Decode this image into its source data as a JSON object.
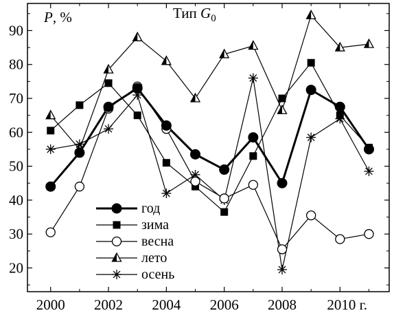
{
  "chart_data": {
    "type": "line",
    "title": {
      "prefix": "Тип ",
      "symbol": "G",
      "subscript": "0"
    },
    "ylabel": {
      "symbol": "P",
      "unit": ", %"
    },
    "xlim": [
      1999.2,
      2011.7
    ],
    "ylim": [
      13,
      98
    ],
    "x_ticks": [
      2000,
      2002,
      2004,
      2006,
      2008,
      2010
    ],
    "x_tick_labels": [
      "2000",
      "2002",
      "2004",
      "2006",
      "2008",
      "2010 г."
    ],
    "y_ticks": [
      20,
      30,
      40,
      50,
      60,
      70,
      80,
      90
    ],
    "y_tick_labels": [
      "20",
      "30",
      "40",
      "50",
      "60",
      "70",
      "80",
      "90"
    ],
    "x": [
      2000,
      2001,
      2002,
      2003,
      2004,
      2005,
      2006,
      2007,
      2008,
      2009,
      2010,
      2011
    ],
    "legend_position": "bottom-left",
    "grid": false,
    "series": [
      {
        "name": "год",
        "marker": "filled-circle",
        "thick": true,
        "values": [
          44,
          54,
          67.5,
          73,
          62,
          53.5,
          49,
          58.5,
          45,
          72.5,
          67.5,
          55
        ]
      },
      {
        "name": "зима",
        "marker": "filled-square",
        "thick": false,
        "values": [
          60.5,
          68,
          74.5,
          65,
          51,
          44,
          36.5,
          53,
          70,
          80.5,
          65,
          55.5
        ]
      },
      {
        "name": "весна",
        "marker": "open-circle",
        "thick": false,
        "values": [
          30.5,
          44,
          67,
          73.5,
          61,
          45.5,
          40.5,
          44.5,
          25.5,
          35.5,
          28.5,
          30
        ]
      },
      {
        "name": "лето",
        "marker": "half-triangle",
        "thick": false,
        "values": [
          65,
          55,
          78.5,
          88,
          81,
          70,
          83,
          85.5,
          66.5,
          94.5,
          85,
          86
        ]
      },
      {
        "name": "осень",
        "marker": "asterisk",
        "thick": false,
        "values": [
          55,
          56.5,
          61,
          71,
          42,
          47.5,
          40,
          76,
          19.5,
          58.5,
          64,
          48.5
        ]
      }
    ]
  }
}
